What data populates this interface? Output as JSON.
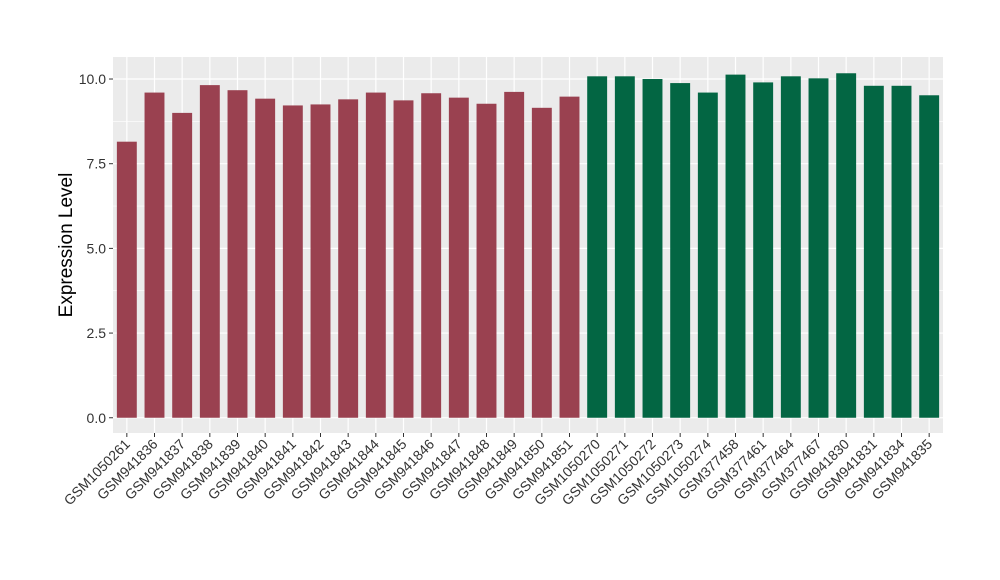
{
  "chart_data": {
    "type": "bar",
    "title": "",
    "xlabel": "",
    "ylabel": "Expression Level",
    "ylim": [
      -0.45,
      10.65
    ],
    "yticks": [
      0.0,
      2.5,
      5.0,
      7.5,
      10.0
    ],
    "ytick_labels": [
      "0.0",
      "2.5",
      "5.0",
      "7.5",
      "10.0"
    ],
    "grid": true,
    "background": "#ebebeb",
    "gridline_color": "#ffffff",
    "categories": [
      "GSM1050261",
      "GSM941836",
      "GSM941837",
      "GSM941838",
      "GSM941839",
      "GSM941840",
      "GSM941841",
      "GSM941842",
      "GSM941843",
      "GSM941844",
      "GSM941845",
      "GSM941846",
      "GSM941847",
      "GSM941848",
      "GSM941849",
      "GSM941850",
      "GSM941851",
      "GSM1050270",
      "GSM1050271",
      "GSM1050272",
      "GSM1050273",
      "GSM1050274",
      "GSM377458",
      "GSM377461",
      "GSM377464",
      "GSM377467",
      "GSM941830",
      "GSM941831",
      "GSM941834",
      "GSM941835"
    ],
    "values": [
      8.15,
      9.6,
      9.0,
      9.82,
      9.67,
      9.42,
      9.22,
      9.25,
      9.4,
      9.6,
      9.37,
      9.58,
      9.45,
      9.27,
      9.62,
      9.15,
      9.48,
      10.08,
      10.08,
      10.0,
      9.88,
      9.6,
      10.13,
      9.9,
      10.08,
      10.02,
      10.17,
      9.8,
      9.8,
      9.52
    ],
    "bar_colors": [
      "#9a4150",
      "#9a4150",
      "#9a4150",
      "#9a4150",
      "#9a4150",
      "#9a4150",
      "#9a4150",
      "#9a4150",
      "#9a4150",
      "#9a4150",
      "#9a4150",
      "#9a4150",
      "#9a4150",
      "#9a4150",
      "#9a4150",
      "#9a4150",
      "#9a4150",
      "#036643",
      "#036643",
      "#036643",
      "#036643",
      "#036643",
      "#036643",
      "#036643",
      "#036643",
      "#036643",
      "#036643",
      "#036643",
      "#036643",
      "#036643"
    ]
  }
}
